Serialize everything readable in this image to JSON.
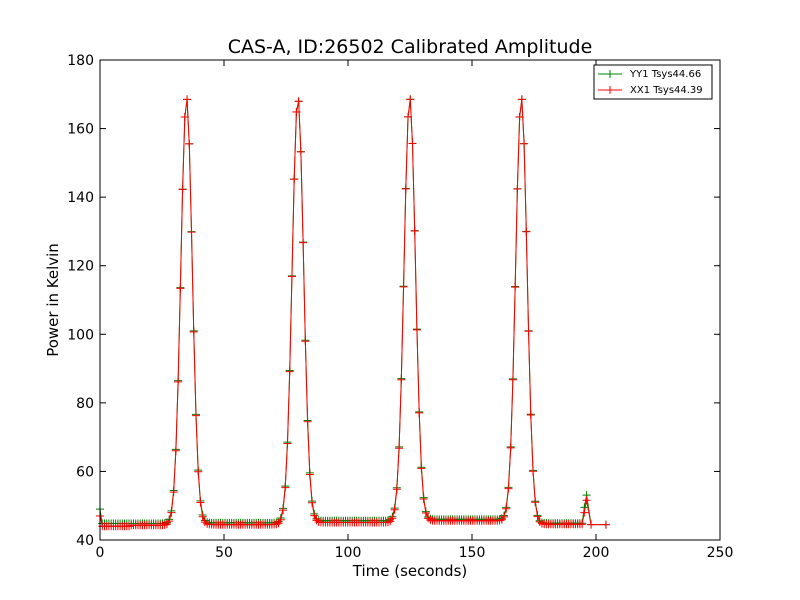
{
  "chart_data": {
    "type": "line",
    "title": "CAS-A, ID:26502 Calibrated Amplitude",
    "xlabel": "Time (seconds)",
    "ylabel": "Power in Kelvin",
    "xlim": [
      0,
      250
    ],
    "ylim": [
      40,
      180
    ],
    "xticks": [
      0,
      50,
      100,
      150,
      200,
      250
    ],
    "yticks": [
      40,
      60,
      80,
      100,
      120,
      140,
      160,
      180
    ],
    "grid": false,
    "legend_position": "top-right",
    "marker": "+",
    "baseline_segments": [
      {
        "from": 0,
        "to": 12,
        "yy": 44.8,
        "xx": 44.0
      },
      {
        "from": 12,
        "to": 30,
        "yy": 44.8,
        "xx": 44.3
      },
      {
        "from": 40,
        "to": 72,
        "yy": 45.0,
        "xx": 44.5
      },
      {
        "from": 85,
        "to": 118,
        "yy": 45.6,
        "xx": 45.1
      },
      {
        "from": 130,
        "to": 162,
        "yy": 46.0,
        "xx": 45.6
      },
      {
        "from": 175,
        "to": 196,
        "yy": 44.9,
        "xx": 44.6
      }
    ],
    "peaks": [
      {
        "center": 34.9,
        "peak_value": 169
      },
      {
        "center": 79.8,
        "peak_value": 169
      },
      {
        "center": 124.9,
        "peak_value": 169
      },
      {
        "center": 169.9,
        "peak_value": 169
      }
    ],
    "peak_width_seconds": 2.3,
    "spike": {
      "center": 196.3,
      "yy": 53.5,
      "xx": 52.0
    },
    "tail": {
      "from": 198,
      "to": 204,
      "value": 44.5
    },
    "start_offset": {
      "yy": 49.0,
      "xx": 47.0
    },
    "series": [
      {
        "name": "YY1 Tsys44.66",
        "color": "#008000"
      },
      {
        "name": "XX1 Tsys44.39",
        "color": "#ff0000"
      }
    ]
  }
}
